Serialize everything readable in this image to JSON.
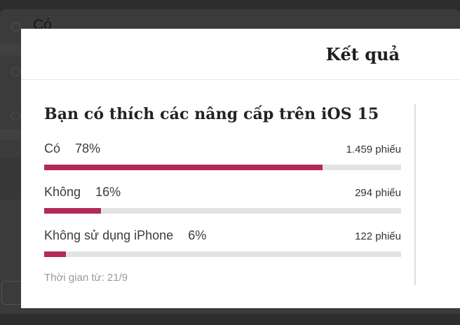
{
  "backdrop": {
    "option_label": "Có"
  },
  "modal": {
    "title": "Kết quả",
    "question": "Bạn có thích các nâng cấp trên iOS 15",
    "results": [
      {
        "label": "Có",
        "percent": "78%",
        "percent_value": 78,
        "votes": "1.459 phiếu"
      },
      {
        "label": "Không",
        "percent": "16%",
        "percent_value": 16,
        "votes": "294 phiếu"
      },
      {
        "label": "Không sử dụng iPhone",
        "percent": "6%",
        "percent_value": 6,
        "votes": "122 phiếu"
      }
    ],
    "time_note": "Thời gian từ: 21/9"
  },
  "colors": {
    "accent": "#b22a58",
    "track": "#e3e3e3"
  },
  "chart_data": {
    "type": "bar",
    "title": "Bạn có thích các nâng cấp trên iOS 15",
    "categories": [
      "Có",
      "Không",
      "Không sử dụng iPhone"
    ],
    "values": [
      78,
      16,
      6
    ],
    "unit": "%",
    "votes": [
      1459,
      294,
      122
    ],
    "votes_labels": [
      "1.459 phiếu",
      "294 phiếu",
      "122 phiếu"
    ],
    "xlabel": "",
    "ylabel": "",
    "ylim": [
      0,
      100
    ],
    "legend": false,
    "note": "Thời gian từ: 21/9"
  }
}
